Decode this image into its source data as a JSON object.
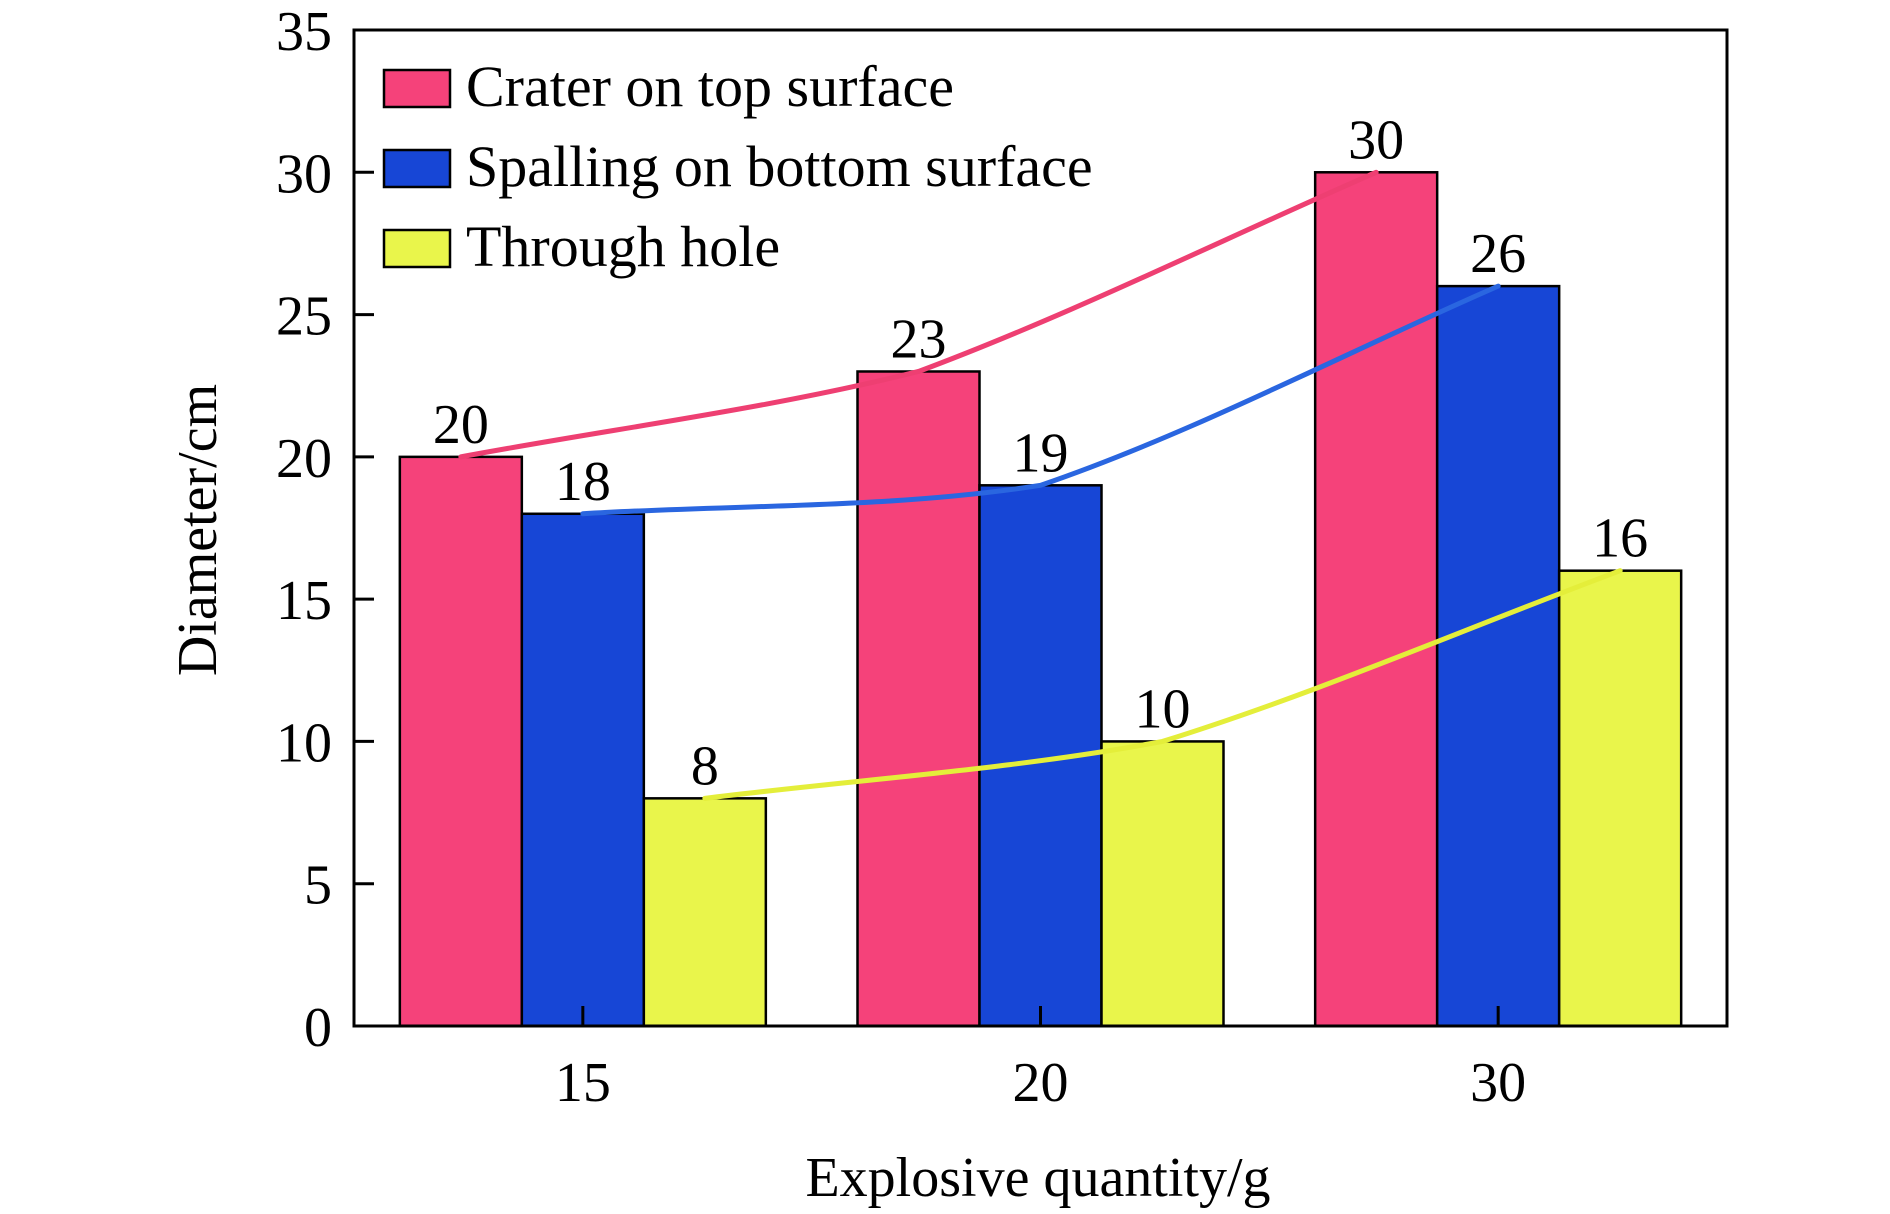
{
  "chart_data": {
    "type": "bar",
    "xlabel": "Explosive quantity/g",
    "ylabel": "Diameter/cm",
    "categories": [
      "15",
      "20",
      "30"
    ],
    "ylim": [
      0,
      35
    ],
    "yticks": [
      0,
      5,
      10,
      15,
      20,
      25,
      30,
      35
    ],
    "grid": false,
    "legend_position": "top-left",
    "series": [
      {
        "name": "Crater on top surface",
        "values": [
          20,
          23,
          30
        ],
        "color": "#f5427a",
        "line_color": "#ee3f72"
      },
      {
        "name": "Spalling on bottom surface",
        "values": [
          18,
          19,
          26
        ],
        "color": "#1746d6",
        "line_color": "#2a66e0"
      },
      {
        "name": "Through hole",
        "values": [
          8,
          10,
          16
        ],
        "color": "#e9f54b",
        "line_color": "#e4ee3a"
      }
    ],
    "data_labels": [
      [
        "20",
        "23",
        "30"
      ],
      [
        "18",
        "19",
        "26"
      ],
      [
        "8",
        "10",
        "16"
      ]
    ]
  }
}
